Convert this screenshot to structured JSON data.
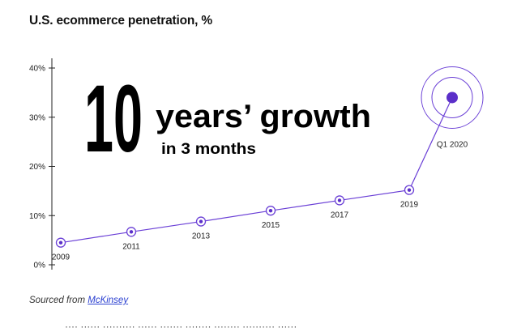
{
  "title": "U.S. ecommerce penetration, %",
  "headline": {
    "big_number": "10",
    "line1": "years’ growth",
    "line2": "in 3 months"
  },
  "source": {
    "prefix": "Sourced from",
    "link_text": "McKinsey"
  },
  "colors": {
    "accent": "#5b2fc9",
    "line": "#6a3fd6",
    "text": "#111111"
  },
  "chart_data": {
    "type": "line",
    "title": "U.S. ecommerce penetration, %",
    "xlabel": "",
    "ylabel": "",
    "ylim": [
      0,
      40
    ],
    "y_ticks": [
      "0%",
      "10%",
      "20%",
      "30%",
      "40%"
    ],
    "y_tick_values": [
      0,
      10,
      20,
      30,
      40
    ],
    "grid": false,
    "categories": [
      "2009",
      "2011",
      "2013",
      "2015",
      "2017",
      "2019",
      "Q1 2020"
    ],
    "values": [
      4.5,
      6.7,
      8.8,
      11.0,
      13.1,
      15.2,
      34.0
    ],
    "highlight": "Q1 2020"
  }
}
